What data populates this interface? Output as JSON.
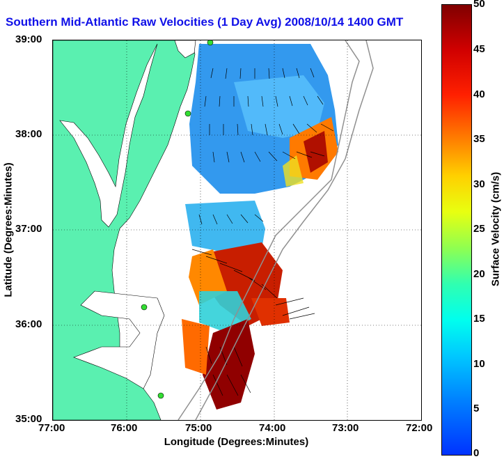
{
  "title": "Southern Mid-Atlantic Raw Velocities (1 Day Avg) 2008/10/14 1400 GMT",
  "axes": {
    "xlabel": "Longitude (Degrees:Minutes)",
    "ylabel": "Latitude (Degrees:Minutes)",
    "x_ticks": [
      "77:00",
      "76:00",
      "75:00",
      "74:00",
      "73:00",
      "72:00"
    ],
    "y_ticks": [
      "39:00",
      "38:00",
      "37:00",
      "36:00",
      "35:00"
    ]
  },
  "colorbar": {
    "label": "Surface Velocity (cm/s)",
    "ticks": [
      "50",
      "45",
      "40",
      "35",
      "30",
      "25",
      "20",
      "15",
      "10",
      "5",
      "0"
    ],
    "min": 0,
    "max": 50
  },
  "colors": {
    "land": "#5af0b0",
    "title": "#1010e8",
    "isobath": "#909090",
    "station": "#33dd33"
  },
  "map": {
    "lon_range": [
      -77,
      -72
    ],
    "lat_range": [
      35,
      39
    ],
    "grid": true
  }
}
